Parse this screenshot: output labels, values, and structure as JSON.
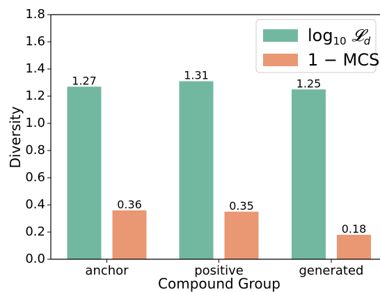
{
  "chart_data": {
    "type": "bar",
    "categories": [
      "anchor",
      "positive",
      "generated"
    ],
    "series": [
      {
        "name": "log₁₀ 𝓛_d",
        "values": [
          1.27,
          1.31,
          1.25
        ],
        "color": "#72b8a0"
      },
      {
        "name": "1 − MCS",
        "values": [
          0.36,
          0.35,
          0.18
        ],
        "color": "#ea9774"
      }
    ],
    "value_labels": [
      [
        "1.27",
        "1.31",
        "1.25"
      ],
      [
        "0.36",
        "0.35",
        "0.18"
      ]
    ],
    "xlabel": "Compound Group",
    "ylabel": "Diversity",
    "ylim": [
      0,
      1.8
    ],
    "yticks": [
      "0.0",
      "0.2",
      "0.4",
      "0.6",
      "0.8",
      "1.0",
      "1.2",
      "1.4",
      "1.6",
      "1.8"
    ],
    "grid": false,
    "legend": "top-right"
  }
}
